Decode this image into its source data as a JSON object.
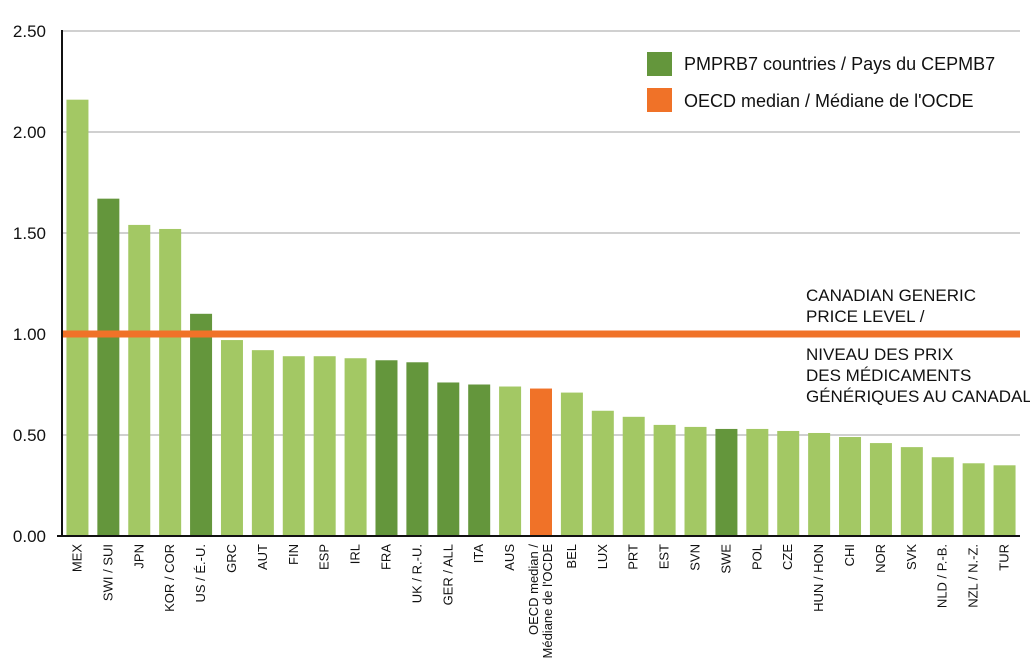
{
  "chart_data": {
    "type": "bar",
    "categories": [
      [
        "MEX"
      ],
      [
        "SWI / SUI"
      ],
      [
        "JPN"
      ],
      [
        "KOR / COR"
      ],
      [
        "US / É.-U."
      ],
      [
        "GRC"
      ],
      [
        "AUT"
      ],
      [
        "FIN"
      ],
      [
        "ESP"
      ],
      [
        "IRL"
      ],
      [
        "FRA"
      ],
      [
        "UK / R.-U."
      ],
      [
        "GER / ALL"
      ],
      [
        "ITA"
      ],
      [
        "AUS"
      ],
      [
        "OECD median /",
        "Médiane de l'OCDE"
      ],
      [
        "BEL"
      ],
      [
        "LUX"
      ],
      [
        "PRT"
      ],
      [
        "EST"
      ],
      [
        "SVN"
      ],
      [
        "SWE"
      ],
      [
        "POL"
      ],
      [
        "CZE"
      ],
      [
        "HUN / HON"
      ],
      [
        "CHI"
      ],
      [
        "NOR"
      ],
      [
        "SVK"
      ],
      [
        "NLD / P.-B."
      ],
      [
        "NZL / N.-Z."
      ],
      [
        "TUR"
      ]
    ],
    "values": [
      2.16,
      1.67,
      1.54,
      1.52,
      1.1,
      0.97,
      0.92,
      0.89,
      0.89,
      0.88,
      0.87,
      0.86,
      0.76,
      0.75,
      0.74,
      0.73,
      0.71,
      0.62,
      0.59,
      0.55,
      0.54,
      0.53,
      0.53,
      0.52,
      0.51,
      0.49,
      0.46,
      0.44,
      0.39,
      0.36,
      0.35
    ],
    "groups": [
      "other",
      "pmprb7",
      "other",
      "other",
      "pmprb7",
      "other",
      "other",
      "other",
      "other",
      "other",
      "pmprb7",
      "pmprb7",
      "pmprb7",
      "pmprb7",
      "other",
      "median",
      "other",
      "other",
      "other",
      "other",
      "other",
      "pmprb7",
      "other",
      "other",
      "other",
      "other",
      "other",
      "other",
      "other",
      "other",
      "other"
    ],
    "ylim": [
      0,
      2.5
    ],
    "yticks": [
      "0.00",
      "0.50",
      "1.00",
      "1.50",
      "2.00",
      "2.50"
    ],
    "ytick_values": [
      0,
      0.5,
      1.0,
      1.5,
      2.0,
      2.5
    ],
    "grid": true,
    "reference_line": {
      "value": 1.0,
      "label_lines": [
        "CANADIAN GENERIC",
        "PRICE LEVEL /",
        "",
        "NIVEAU DES PRIX",
        "DES  MÉDICAMENTS",
        "GÉNÉRIQUES AU CANADAL"
      ]
    },
    "legend": {
      "placement": "top-right",
      "entries": [
        {
          "label": "PMPRB7 countries / Pays du CEPMB7",
          "color": "#64963c"
        },
        {
          "label": "OECD median / Médiane de l'OCDE",
          "color": "#f07228"
        }
      ]
    },
    "colors": {
      "other": "#a3c864",
      "pmprb7": "#64963c",
      "median": "#f07228",
      "reference_line": "#f07228",
      "grid": "#b4b4b4"
    }
  }
}
